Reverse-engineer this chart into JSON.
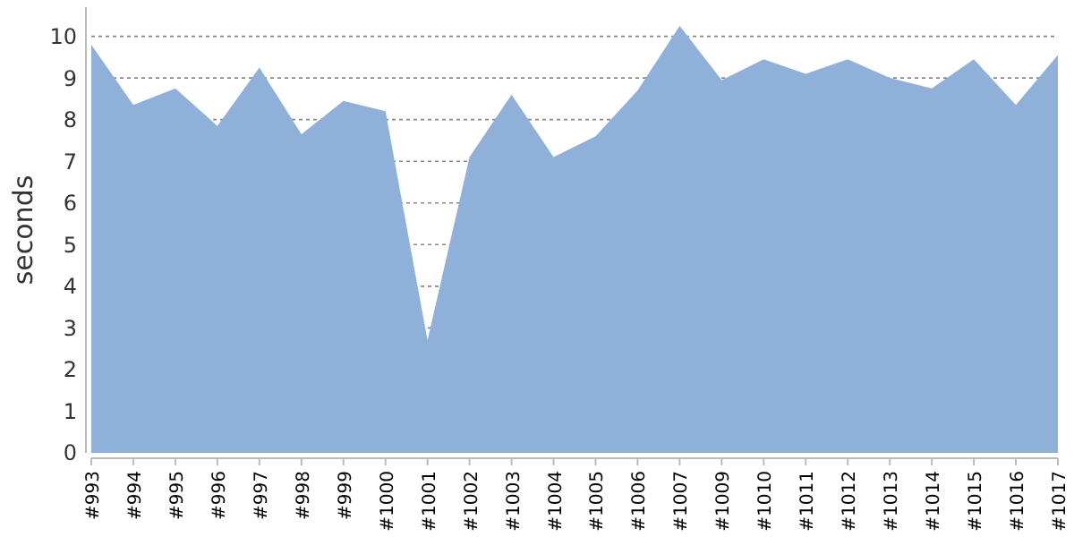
{
  "chart_data": {
    "type": "area",
    "ylabel": "seconds",
    "categories": [
      "#993",
      "#994",
      "#995",
      "#996",
      "#997",
      "#998",
      "#999",
      "#1000",
      "#1001",
      "#1002",
      "#1003",
      "#1004",
      "#1005",
      "#1006",
      "#1007",
      "#1009",
      "#1010",
      "#1011",
      "#1012",
      "#1013",
      "#1014",
      "#1015",
      "#1016",
      "#1017"
    ],
    "series": [
      {
        "color": "#8eb0d9",
        "values": [
          9.8,
          8.35,
          8.75,
          7.85,
          9.25,
          7.65,
          8.45,
          8.2,
          2.7,
          7.1,
          8.6,
          7.1,
          7.6,
          8.7,
          10.25,
          8.95,
          9.45,
          9.1,
          9.45,
          9.0,
          8.75,
          9.45,
          8.35,
          9.55
        ]
      }
    ],
    "ylim": [
      0,
      10.7
    ],
    "yticks": [
      0,
      1,
      2,
      3,
      4,
      5,
      6,
      7,
      8,
      9,
      10
    ],
    "grid": "y"
  }
}
